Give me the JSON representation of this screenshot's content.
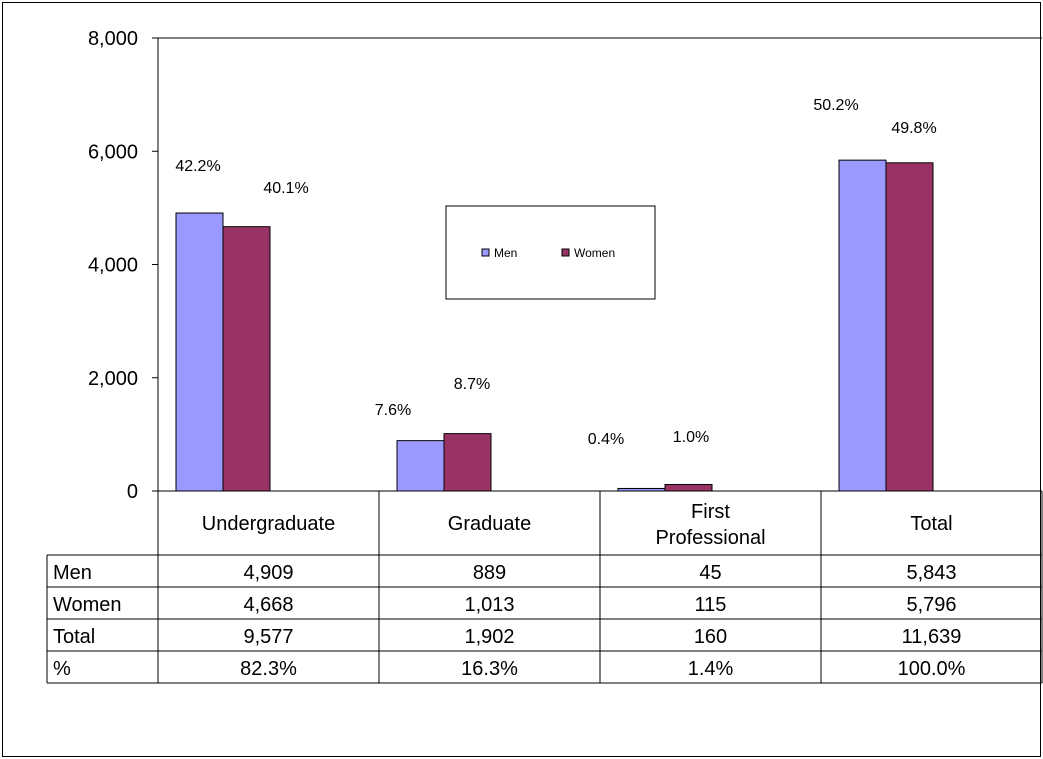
{
  "chart_data": {
    "type": "bar",
    "categories": [
      "Undergraduate",
      "Graduate",
      "First Professional",
      "Total"
    ],
    "category_lines": [
      [
        "Undergraduate"
      ],
      [
        "Graduate"
      ],
      [
        "First",
        "Professional"
      ],
      [
        "Total"
      ]
    ],
    "series": [
      {
        "name": "Men",
        "color": "#9999ff",
        "values": [
          4909,
          889,
          45,
          5843
        ],
        "percent_labels": [
          "42.2%",
          "7.6%",
          "0.4%",
          "50.2%"
        ]
      },
      {
        "name": "Women",
        "color": "#993366",
        "values": [
          4668,
          1013,
          115,
          5796
        ],
        "percent_labels": [
          "40.1%",
          "8.7%",
          "1.0%",
          "49.8%"
        ]
      }
    ],
    "ylim": [
      0,
      8000
    ],
    "yticks": [
      0,
      2000,
      4000,
      6000,
      8000
    ],
    "ytick_labels": [
      "0",
      "2,000",
      "4,000",
      "6,000",
      "8,000"
    ],
    "legend_position": "center",
    "grid": false,
    "data_table": {
      "rows": [
        {
          "label": "Men",
          "values": [
            "4,909",
            "889",
            "45",
            "5,843"
          ]
        },
        {
          "label": "Women",
          "values": [
            "4,668",
            "1,013",
            "115",
            "5,796"
          ]
        },
        {
          "label": "Total",
          "values": [
            "9,577",
            "1,902",
            "160",
            "11,639"
          ]
        },
        {
          "label": "%",
          "values": [
            "82.3%",
            "16.3%",
            "1.4%",
            "100.0%"
          ]
        }
      ]
    }
  }
}
